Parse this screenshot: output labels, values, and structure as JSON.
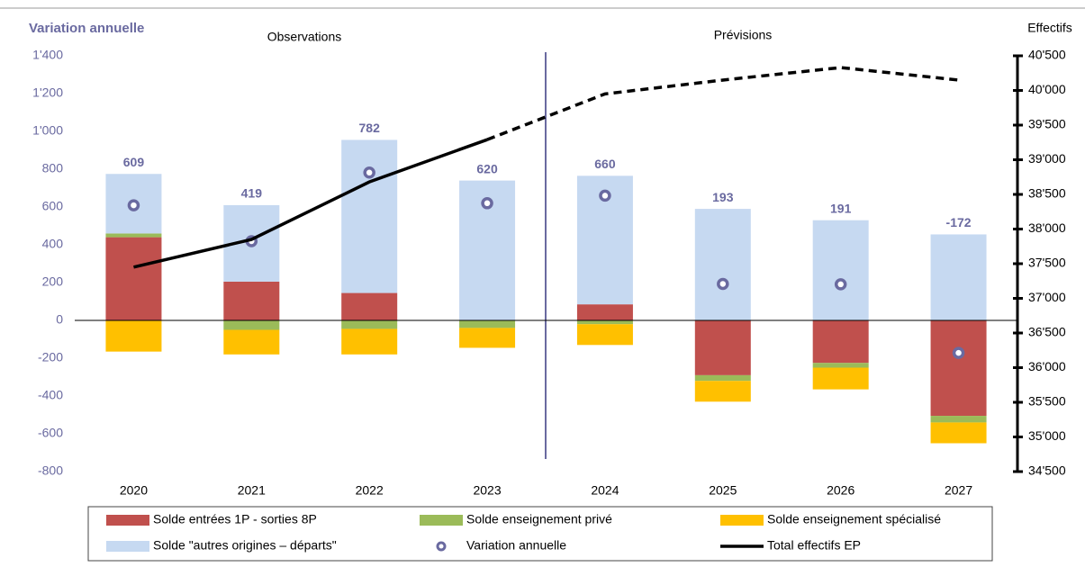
{
  "chart_data": {
    "type": "bar",
    "stacked": true,
    "y_label": "Variation annuelle",
    "y2_label": "Effectifs",
    "annotations": [
      "Observations",
      "Prévisions"
    ],
    "categories": [
      "2020",
      "2021",
      "2022",
      "2023",
      "2024",
      "2025",
      "2026",
      "2027"
    ],
    "series": [
      {
        "name": "Solde entrées 1P - sorties 8P",
        "color": "#c0504d",
        "values": [
          440,
          205,
          145,
          0,
          85,
          -290,
          -225,
          -505
        ]
      },
      {
        "name": "Solde enseignement privé",
        "color": "#9bbb59",
        "values": [
          20,
          -50,
          -45,
          -40,
          -20,
          -30,
          -25,
          -35
        ]
      },
      {
        "name": "Solde enseignement spécialisé",
        "color": "#ffc000",
        "values": [
          -165,
          -130,
          -135,
          -105,
          -110,
          -110,
          -115,
          -110
        ]
      },
      {
        "name": "Solde \"autres origines – départs\"",
        "color": "#c6d9f1",
        "values": [
          315,
          405,
          810,
          740,
          680,
          590,
          530,
          455
        ]
      },
      {
        "name": "Variation annuelle",
        "type": "scatter",
        "color": "#6a6aa0",
        "values": [
          609,
          419,
          782,
          620,
          660,
          193,
          191,
          -172
        ]
      },
      {
        "name": "Total effectifs EP",
        "type": "line",
        "axis": "y2",
        "color": "#000000",
        "dash_from": "2023",
        "values": [
          37450,
          37850,
          38680,
          39290,
          39950,
          40150,
          40330,
          40150
        ]
      }
    ],
    "ylim": [
      -800,
      1400
    ],
    "yticks": [
      -800,
      -600,
      -400,
      -200,
      0,
      200,
      400,
      600,
      800,
      {
        "value": 1000,
        "label": "1'000"
      },
      {
        "value": 1200,
        "label": "1'200"
      },
      {
        "value": 1400,
        "label": "1'400"
      }
    ],
    "y2lim": [
      34500,
      40500
    ],
    "y2ticks": [
      {
        "value": 34500,
        "label": "34'500"
      },
      {
        "value": 35000,
        "label": "35'000"
      },
      {
        "value": 35500,
        "label": "35'500"
      },
      {
        "value": 36000,
        "label": "36'000"
      },
      {
        "value": 36500,
        "label": "36'500"
      },
      {
        "value": 37000,
        "label": "37'000"
      },
      {
        "value": 37500,
        "label": "37'500"
      },
      {
        "value": 38000,
        "label": "38'000"
      },
      {
        "value": 38500,
        "label": "38'500"
      },
      {
        "value": 39000,
        "label": "39'000"
      },
      {
        "value": 39500,
        "label": "39'500"
      },
      {
        "value": 40000,
        "label": "40'000"
      },
      {
        "value": 40500,
        "label": "40'500"
      }
    ]
  }
}
